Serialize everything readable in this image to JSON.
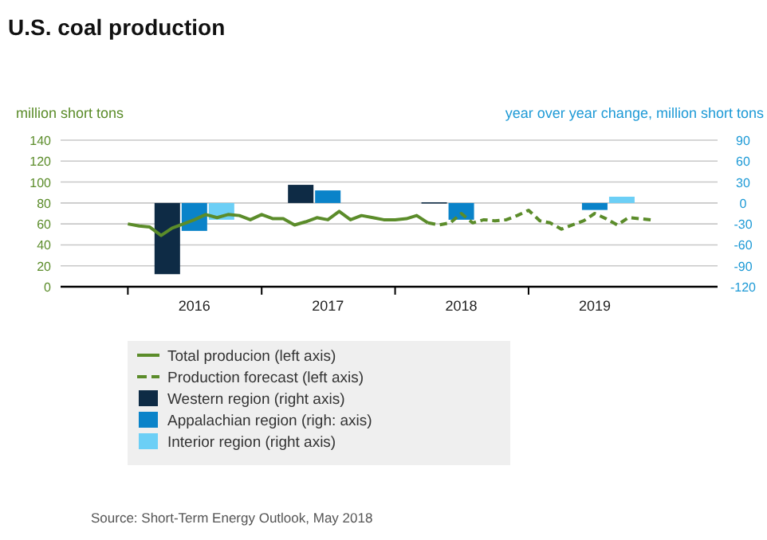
{
  "chart_data": {
    "type": "line",
    "title": "U.S. coal production",
    "ylabel": "million short tons",
    "y2label": "year over year change, million short tons",
    "xlim": [
      "2015-07",
      "2020-06"
    ],
    "xticks": [
      {
        "value": "2016-01",
        "label": null
      },
      {
        "value": "2016-07",
        "label": "2016"
      },
      {
        "value": "2017-01",
        "label": null
      },
      {
        "value": "2017-07",
        "label": "2017"
      },
      {
        "value": "2018-01",
        "label": null
      },
      {
        "value": "2018-07",
        "label": "2018"
      },
      {
        "value": "2019-01",
        "label": null
      },
      {
        "value": "2019-07",
        "label": "2019"
      }
    ],
    "ylim": [
      0,
      140
    ],
    "yticks": [
      0,
      20,
      40,
      60,
      80,
      100,
      120,
      140
    ],
    "y2lim": [
      -120,
      90
    ],
    "y2ticks": [
      -120,
      -90,
      -60,
      -30,
      0,
      30,
      60,
      90
    ],
    "grid": "y",
    "legend": "bottom",
    "series": [
      {
        "name": "Total producion (left axis)",
        "color": "#5b8c2a",
        "line_style": "solid",
        "x": [
          "2016-01",
          "2016-02",
          "2016-03",
          "2016-04",
          "2016-05",
          "2016-06",
          "2016-07",
          "2016-08",
          "2016-09",
          "2016-10",
          "2016-11",
          "2016-12",
          "2017-01",
          "2017-02",
          "2017-03",
          "2017-04",
          "2017-05",
          "2017-06",
          "2017-07",
          "2017-08",
          "2017-09",
          "2017-10",
          "2017-11",
          "2017-12",
          "2018-01",
          "2018-02",
          "2018-03",
          "2018-04"
        ],
        "values": [
          60,
          58,
          57,
          49,
          56,
          60,
          64,
          69,
          66,
          69,
          68,
          64,
          69,
          65,
          65,
          59,
          62,
          66,
          64,
          72,
          64,
          68,
          66,
          64,
          64,
          65,
          68,
          61
        ]
      },
      {
        "name": "Production forecast (left axis)",
        "color": "#5b8c2a",
        "line_style": "dashed",
        "x": [
          "2018-04",
          "2018-05",
          "2018-06",
          "2018-07",
          "2018-08",
          "2018-09",
          "2018-10",
          "2018-11",
          "2018-12",
          "2019-01",
          "2019-02",
          "2019-03",
          "2019-04",
          "2019-05",
          "2019-06",
          "2019-07",
          "2019-08",
          "2019-09",
          "2019-10",
          "2019-11",
          "2019-12"
        ],
        "values": [
          61,
          59,
          61,
          70,
          61,
          64,
          63,
          64,
          68,
          73,
          63,
          61,
          55,
          59,
          63,
          70,
          65,
          59,
          66,
          65,
          64
        ]
      },
      {
        "name": "Western region (right axis)",
        "type": "bar",
        "axis": "y2",
        "color": "#0e2b45",
        "x": [
          "2016-07",
          "2017-07",
          "2018-07"
        ],
        "values": [
          -102,
          26,
          1
        ]
      },
      {
        "name": "Appalachian region (righ: axis)",
        "type": "bar",
        "axis": "y2",
        "color": "#0a83c9",
        "x": [
          "2016-07",
          "2017-07",
          "2018-07",
          "2019-07"
        ],
        "values": [
          -40,
          18,
          -24,
          -10
        ]
      },
      {
        "name": "Interior region (right axis)",
        "type": "bar",
        "axis": "y2",
        "color": "#6ccff6",
        "x": [
          "2016-07",
          "2019-07"
        ],
        "values": [
          -24,
          9
        ]
      }
    ],
    "annotations": [
      "Source: Short-Term Energy Outlook, May 2018"
    ]
  }
}
